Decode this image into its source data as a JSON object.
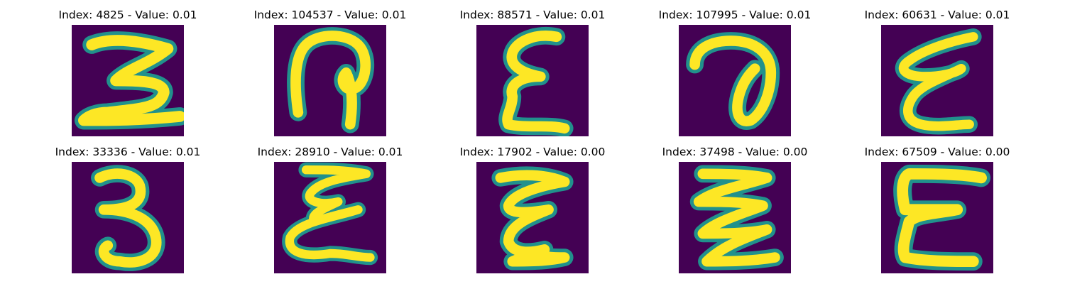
{
  "colors": {
    "background": "#440154",
    "stroke_core": "#fde725",
    "stroke_mid": "#21918c",
    "stroke_edge": "#3b528b"
  },
  "panels": [
    {
      "title": "Index: 4825 - Value: 0.01",
      "glyph": "three-block"
    },
    {
      "title": "Index: 104537 - Value: 0.01",
      "glyph": "loop-arch"
    },
    {
      "title": "Index: 88571 - Value: 0.01",
      "glyph": "epsilon-narrow"
    },
    {
      "title": "Index: 107995 - Value: 0.01",
      "glyph": "loop-curl"
    },
    {
      "title": "Index: 60631 - Value: 0.01",
      "glyph": "epsilon-slant"
    },
    {
      "title": "Index: 33336 - Value: 0.01",
      "glyph": "three-round"
    },
    {
      "title": "Index: 28910 - Value: 0.01",
      "glyph": "epsilon-wide"
    },
    {
      "title": "Index: 17902 - Value: 0.00",
      "glyph": "epsilon-wavy"
    },
    {
      "title": "Index: 37498 - Value: 0.00",
      "glyph": "zigzag"
    },
    {
      "title": "Index: 67509 - Value: 0.00",
      "glyph": "epsilon-block"
    }
  ]
}
